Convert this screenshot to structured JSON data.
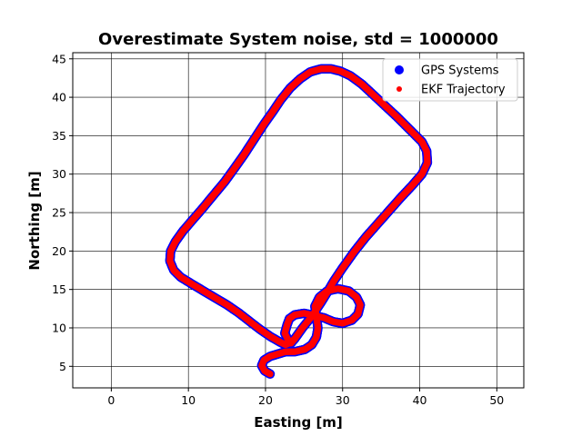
{
  "chart_data": {
    "type": "scatter",
    "title": "Overestimate System noise, std = 1000000",
    "xlabel": "Easting [m]",
    "ylabel": "Northing [m]",
    "xlim": [
      -5,
      53.5
    ],
    "ylim": [
      2.2,
      45.8
    ],
    "xticks": [
      0,
      10,
      20,
      30,
      40,
      50
    ],
    "yticks": [
      5,
      10,
      15,
      20,
      25,
      30,
      35,
      40,
      45
    ],
    "grid": true,
    "legend_position": "top-right",
    "series": [
      {
        "name": "GPS Systems",
        "color": "#0000ff",
        "marker": "large-dot",
        "points": [
          [
            20.6,
            4.0
          ],
          [
            19.9,
            4.4
          ],
          [
            19.5,
            5.1
          ],
          [
            19.8,
            5.8
          ],
          [
            20.6,
            6.3
          ],
          [
            21.6,
            6.6
          ],
          [
            22.6,
            6.9
          ],
          [
            23.8,
            6.9
          ],
          [
            25.1,
            7.2
          ],
          [
            26.0,
            7.8
          ],
          [
            26.6,
            8.8
          ],
          [
            26.8,
            10.0
          ],
          [
            26.6,
            11.4
          ],
          [
            26.4,
            12.8
          ],
          [
            27.0,
            14.0
          ],
          [
            28.0,
            14.8
          ],
          [
            29.4,
            15.1
          ],
          [
            30.8,
            14.8
          ],
          [
            31.8,
            14.0
          ],
          [
            32.3,
            13.0
          ],
          [
            32.0,
            11.8
          ],
          [
            31.2,
            11.0
          ],
          [
            30.0,
            10.6
          ],
          [
            28.8,
            10.8
          ],
          [
            27.6,
            11.3
          ],
          [
            26.4,
            11.6
          ],
          [
            25.0,
            11.9
          ],
          [
            23.8,
            11.7
          ],
          [
            23.1,
            11.2
          ],
          [
            22.8,
            10.4
          ],
          [
            22.5,
            9.3
          ],
          [
            22.9,
            8.5
          ],
          [
            23.3,
            8.0
          ],
          [
            23.8,
            8.6
          ],
          [
            24.8,
            10.0
          ],
          [
            26.0,
            11.5
          ],
          [
            27.2,
            13.3
          ],
          [
            28.0,
            14.6
          ],
          [
            28.8,
            16.0
          ],
          [
            30.0,
            17.8
          ],
          [
            31.5,
            19.9
          ],
          [
            33.0,
            21.8
          ],
          [
            34.5,
            23.5
          ],
          [
            36.0,
            25.2
          ],
          [
            37.5,
            26.9
          ],
          [
            39.0,
            28.5
          ],
          [
            40.3,
            30.0
          ],
          [
            41.0,
            31.5
          ],
          [
            40.9,
            33.0
          ],
          [
            40.3,
            34.2
          ],
          [
            39.5,
            35.0
          ],
          [
            38.5,
            36.0
          ],
          [
            37.0,
            37.5
          ],
          [
            35.5,
            38.9
          ],
          [
            34.0,
            40.3
          ],
          [
            32.5,
            41.7
          ],
          [
            31.0,
            42.8
          ],
          [
            29.7,
            43.4
          ],
          [
            28.5,
            43.7
          ],
          [
            27.2,
            43.7
          ],
          [
            25.8,
            43.3
          ],
          [
            24.5,
            42.4
          ],
          [
            23.2,
            41.2
          ],
          [
            22.0,
            39.7
          ],
          [
            21.0,
            38.2
          ],
          [
            19.8,
            36.5
          ],
          [
            18.5,
            34.5
          ],
          [
            17.2,
            32.5
          ],
          [
            16.0,
            30.8
          ],
          [
            14.7,
            29.0
          ],
          [
            13.2,
            27.2
          ],
          [
            11.8,
            25.5
          ],
          [
            10.5,
            24.0
          ],
          [
            9.3,
            22.6
          ],
          [
            8.3,
            21.2
          ],
          [
            7.7,
            20.0
          ],
          [
            7.6,
            18.7
          ],
          [
            8.1,
            17.5
          ],
          [
            9.0,
            16.6
          ],
          [
            10.3,
            15.8
          ],
          [
            11.8,
            14.9
          ],
          [
            13.3,
            14.0
          ],
          [
            15.0,
            13.0
          ],
          [
            16.6,
            11.9
          ],
          [
            18.0,
            10.8
          ],
          [
            19.3,
            9.8
          ],
          [
            20.6,
            8.9
          ],
          [
            21.8,
            8.2
          ],
          [
            22.6,
            7.8
          ],
          [
            23.3,
            8.1
          ],
          [
            23.8,
            8.6
          ]
        ]
      },
      {
        "name": "EKF Trajectory",
        "color": "#ff0000",
        "marker": "small-dot",
        "points": [
          [
            20.6,
            4.0
          ],
          [
            19.9,
            4.4
          ],
          [
            19.5,
            5.1
          ],
          [
            19.8,
            5.8
          ],
          [
            20.6,
            6.3
          ],
          [
            21.6,
            6.6
          ],
          [
            22.6,
            6.9
          ],
          [
            23.8,
            6.9
          ],
          [
            25.1,
            7.2
          ],
          [
            26.0,
            7.8
          ],
          [
            26.6,
            8.8
          ],
          [
            26.8,
            10.0
          ],
          [
            26.6,
            11.4
          ],
          [
            26.4,
            12.8
          ],
          [
            27.0,
            14.0
          ],
          [
            28.0,
            14.8
          ],
          [
            29.4,
            15.1
          ],
          [
            30.8,
            14.8
          ],
          [
            31.8,
            14.0
          ],
          [
            32.3,
            13.0
          ],
          [
            32.0,
            11.8
          ],
          [
            31.2,
            11.0
          ],
          [
            30.0,
            10.6
          ],
          [
            28.8,
            10.8
          ],
          [
            27.6,
            11.3
          ],
          [
            26.4,
            11.6
          ],
          [
            25.0,
            11.9
          ],
          [
            23.8,
            11.7
          ],
          [
            23.1,
            11.2
          ],
          [
            22.8,
            10.4
          ],
          [
            22.5,
            9.3
          ],
          [
            22.9,
            8.5
          ],
          [
            23.3,
            8.0
          ],
          [
            23.8,
            8.6
          ],
          [
            24.8,
            10.0
          ],
          [
            26.0,
            11.5
          ],
          [
            27.2,
            13.3
          ],
          [
            28.0,
            14.6
          ],
          [
            28.8,
            16.0
          ],
          [
            30.0,
            17.8
          ],
          [
            31.5,
            19.9
          ],
          [
            33.0,
            21.8
          ],
          [
            34.5,
            23.5
          ],
          [
            36.0,
            25.2
          ],
          [
            37.5,
            26.9
          ],
          [
            39.0,
            28.5
          ],
          [
            40.3,
            30.0
          ],
          [
            41.0,
            31.5
          ],
          [
            40.9,
            33.0
          ],
          [
            40.3,
            34.2
          ],
          [
            39.5,
            35.0
          ],
          [
            38.5,
            36.0
          ],
          [
            37.0,
            37.5
          ],
          [
            35.5,
            38.9
          ],
          [
            34.0,
            40.3
          ],
          [
            32.5,
            41.7
          ],
          [
            31.0,
            42.8
          ],
          [
            29.7,
            43.4
          ],
          [
            28.5,
            43.7
          ],
          [
            27.2,
            43.7
          ],
          [
            25.8,
            43.3
          ],
          [
            24.5,
            42.4
          ],
          [
            23.2,
            41.2
          ],
          [
            22.0,
            39.7
          ],
          [
            21.0,
            38.2
          ],
          [
            19.8,
            36.5
          ],
          [
            18.5,
            34.5
          ],
          [
            17.2,
            32.5
          ],
          [
            16.0,
            30.8
          ],
          [
            14.7,
            29.0
          ],
          [
            13.2,
            27.2
          ],
          [
            11.8,
            25.5
          ],
          [
            10.5,
            24.0
          ],
          [
            9.3,
            22.6
          ],
          [
            8.3,
            21.2
          ],
          [
            7.7,
            20.0
          ],
          [
            7.6,
            18.7
          ],
          [
            8.1,
            17.5
          ],
          [
            9.0,
            16.6
          ],
          [
            10.3,
            15.8
          ],
          [
            11.8,
            14.9
          ],
          [
            13.3,
            14.0
          ],
          [
            15.0,
            13.0
          ],
          [
            16.6,
            11.9
          ],
          [
            18.0,
            10.8
          ],
          [
            19.3,
            9.8
          ],
          [
            20.6,
            8.9
          ],
          [
            21.8,
            8.2
          ],
          [
            22.6,
            7.8
          ],
          [
            23.3,
            8.1
          ],
          [
            23.8,
            8.6
          ]
        ]
      }
    ]
  }
}
